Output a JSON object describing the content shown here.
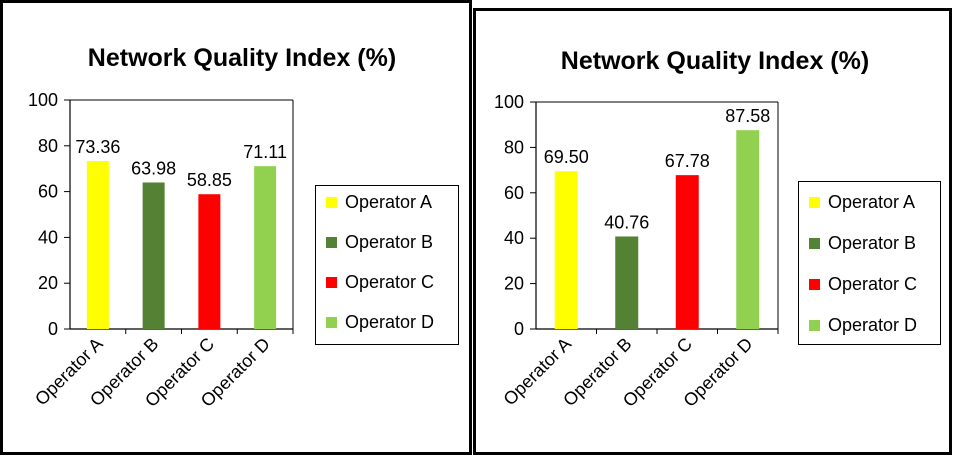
{
  "chart_data": [
    {
      "type": "bar",
      "title": "Network Quality Index (%)",
      "categories": [
        "Operator A",
        "Operator B",
        "Operator C",
        "Operator D"
      ],
      "values": [
        73.36,
        63.98,
        58.85,
        71.11
      ],
      "value_labels": [
        "73.36",
        "63.98",
        "58.85",
        "71.11"
      ],
      "colors": [
        "#ffff00",
        "#548235",
        "#ff0000",
        "#92d050"
      ],
      "ylim": [
        0,
        100
      ],
      "yticks": [
        "0",
        "20",
        "40",
        "60",
        "80",
        "100"
      ],
      "legend": [
        "Operator A",
        "Operator B",
        "Operator C",
        "Operator D"
      ],
      "legend_position": "right",
      "grid": false
    },
    {
      "type": "bar",
      "title": "Network Quality Index (%)",
      "categories": [
        "Operator A",
        "Operator B",
        "Operator C",
        "Operator D"
      ],
      "values": [
        69.5,
        40.76,
        67.78,
        87.58
      ],
      "value_labels": [
        "69.50",
        "40.76",
        "67.78",
        "87.58"
      ],
      "colors": [
        "#ffff00",
        "#548235",
        "#ff0000",
        "#92d050"
      ],
      "ylim": [
        0,
        100
      ],
      "yticks": [
        "0",
        "20",
        "40",
        "60",
        "80",
        "100"
      ],
      "legend": [
        "Operator A",
        "Operator B",
        "Operator C",
        "Operator D"
      ],
      "legend_position": "right",
      "grid": false
    }
  ]
}
